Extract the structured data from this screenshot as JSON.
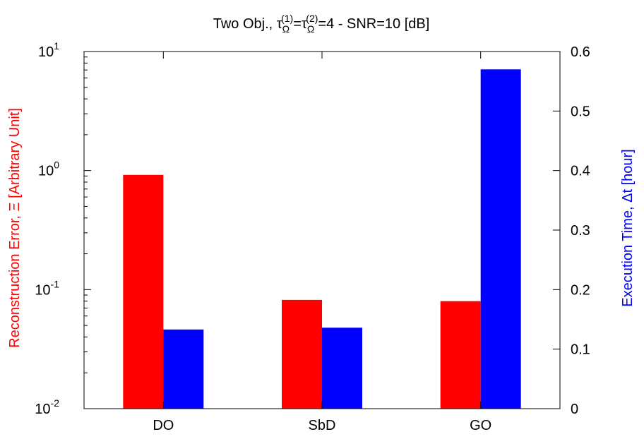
{
  "chart_data": {
    "type": "bar",
    "title": {
      "prefix": "Two Obj., ",
      "tau": "τ",
      "sub": "Ω",
      "sup1": "(1)",
      "sup2": "(2)",
      "equals": "=",
      "suffix": "=4 - SNR=10 [dB]"
    },
    "categories": [
      "DO",
      "SbD",
      "GO"
    ],
    "y_left": {
      "label": "Reconstruction Error, Ξ [Arbitrary Unit]",
      "scale": "log",
      "ylim": [
        0.01,
        10
      ],
      "ticks": [
        {
          "value": 10,
          "base": "10",
          "exp": "1"
        },
        {
          "value": 1,
          "base": "10",
          "exp": "0"
        },
        {
          "value": 0.1,
          "base": "10",
          "exp": "-1"
        },
        {
          "value": 0.01,
          "base": "10",
          "exp": "-2"
        }
      ],
      "color": "#ff0000"
    },
    "y_right": {
      "label": "Execution Time, Δt [hour]",
      "scale": "linear",
      "ylim": [
        0,
        0.6
      ],
      "ticks": [
        "0",
        "0.1",
        "0.2",
        "0.3",
        "0.4",
        "0.5",
        "0.6"
      ],
      "color": "#0000ff"
    },
    "series": [
      {
        "axis": "left",
        "color": "#ff0000",
        "values": [
          0.92,
          0.082,
          0.08
        ]
      },
      {
        "axis": "right",
        "color": "#0000ff",
        "values": [
          0.133,
          0.136,
          0.57
        ]
      }
    ],
    "grid": false,
    "legend": "none"
  }
}
